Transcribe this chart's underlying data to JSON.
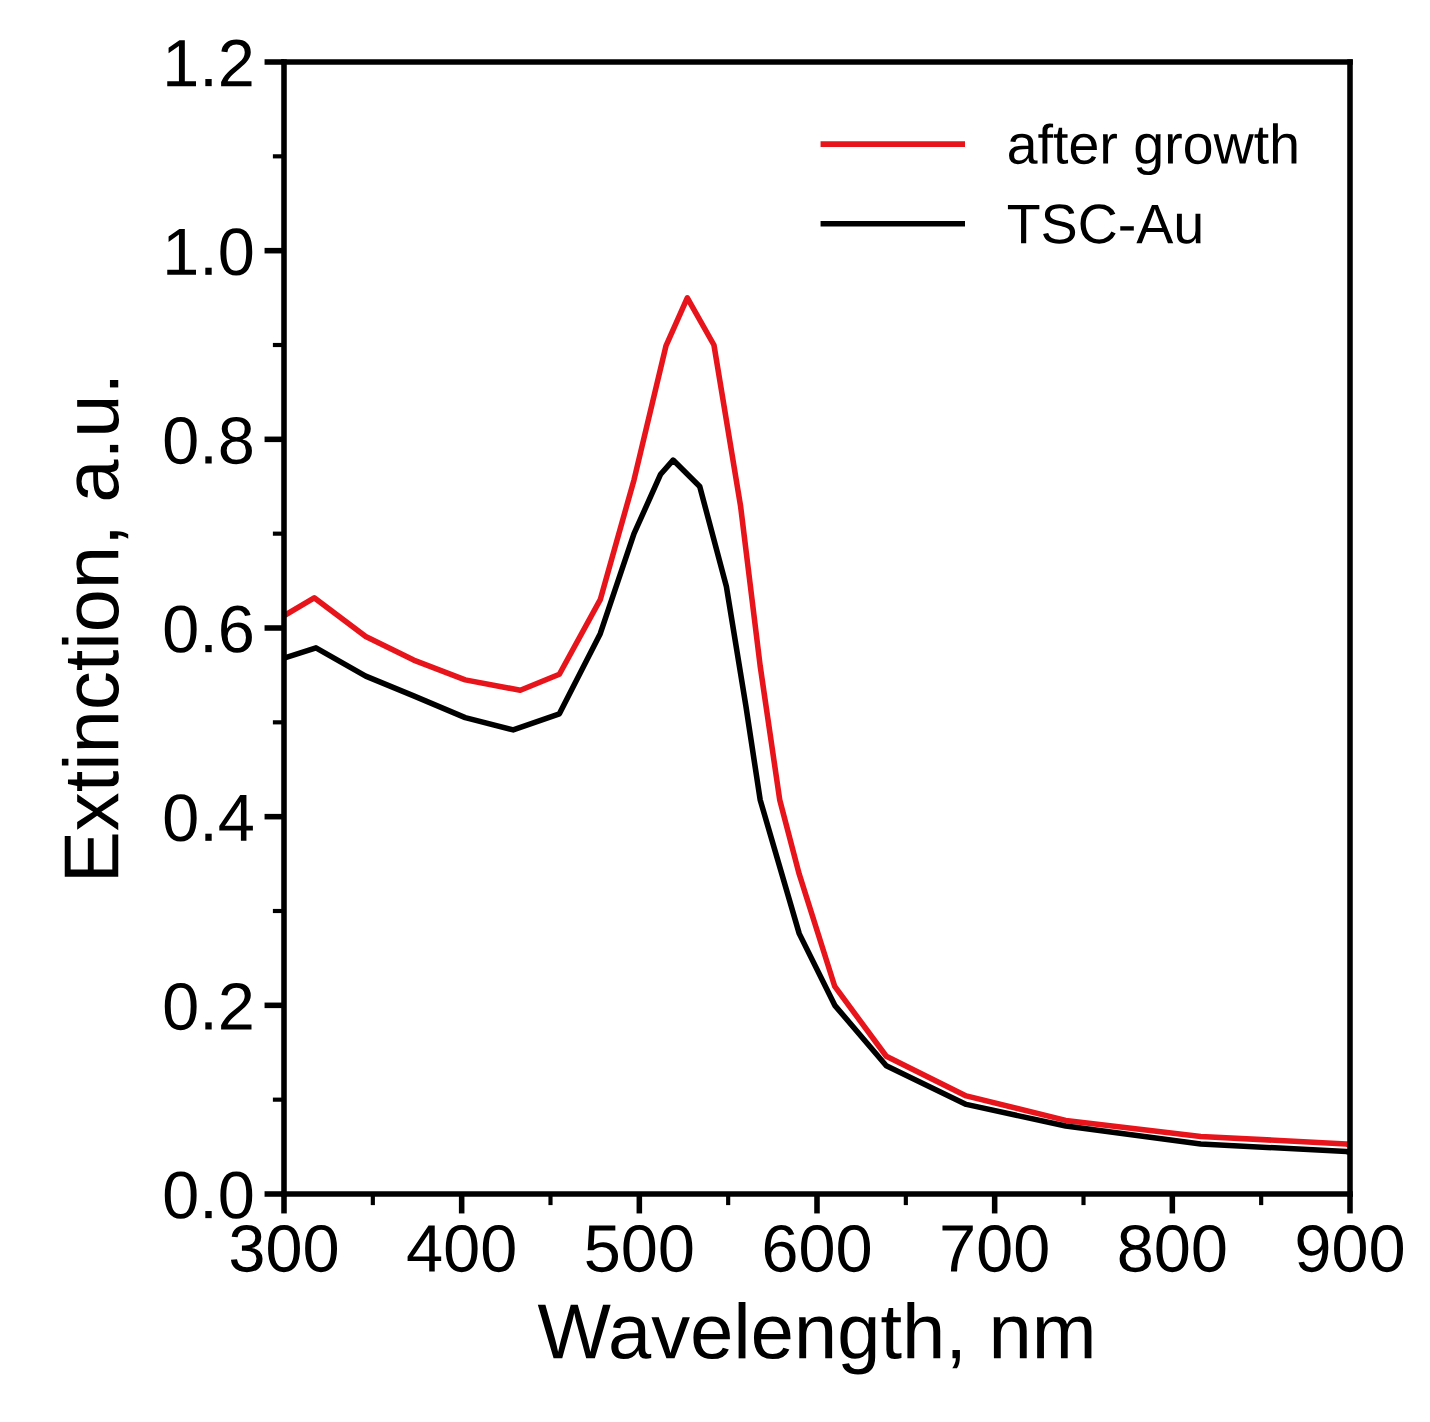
{
  "chart_data": {
    "type": "line",
    "xlabel": "Wavelength, nm",
    "ylabel": "Extinction, a.u.",
    "xlim": [
      300,
      900
    ],
    "ylim": [
      0,
      1.2
    ],
    "xticks": [
      300,
      400,
      500,
      600,
      700,
      800,
      900
    ],
    "yticks": [
      {
        "value": 0,
        "label": "0.0"
      },
      {
        "value": 0.2,
        "label": "0.2"
      },
      {
        "value": 0.4,
        "label": "0.4"
      },
      {
        "value": 0.6,
        "label": "0.6"
      },
      {
        "value": 0.8,
        "label": "0.8"
      },
      {
        "value": 1.0,
        "label": "1.0"
      },
      {
        "value": 1.2,
        "label": "1.2"
      }
    ],
    "legend": "top right",
    "grid": false,
    "marker": "none",
    "line_style": "solid",
    "series": [
      {
        "name": "after growth",
        "color": "#e8141b",
        "x": [
          300,
          317,
          346,
          373,
          402,
          433,
          455,
          478,
          497,
          515,
          527,
          542,
          557,
          568,
          579,
          590,
          610,
          639,
          684,
          740,
          816,
          898,
          900
        ],
        "values": [
          0.613,
          0.632,
          0.591,
          0.566,
          0.545,
          0.534,
          0.551,
          0.63,
          0.757,
          0.899,
          0.95,
          0.9,
          0.729,
          0.56,
          0.418,
          0.339,
          0.22,
          0.146,
          0.104,
          0.078,
          0.061,
          0.053,
          0.052
        ]
      },
      {
        "name": "TSC-Au",
        "color": "#000000",
        "x": [
          300,
          318,
          346,
          373,
          402,
          429,
          455,
          478,
          497,
          512,
          519,
          534,
          549,
          560,
          568,
          590,
          610,
          639,
          684,
          740,
          816,
          898,
          900
        ],
        "values": [
          0.568,
          0.579,
          0.549,
          0.528,
          0.505,
          0.492,
          0.509,
          0.594,
          0.7,
          0.763,
          0.778,
          0.75,
          0.644,
          0.517,
          0.418,
          0.276,
          0.2,
          0.136,
          0.095,
          0.072,
          0.053,
          0.045,
          0.044
        ]
      }
    ]
  }
}
